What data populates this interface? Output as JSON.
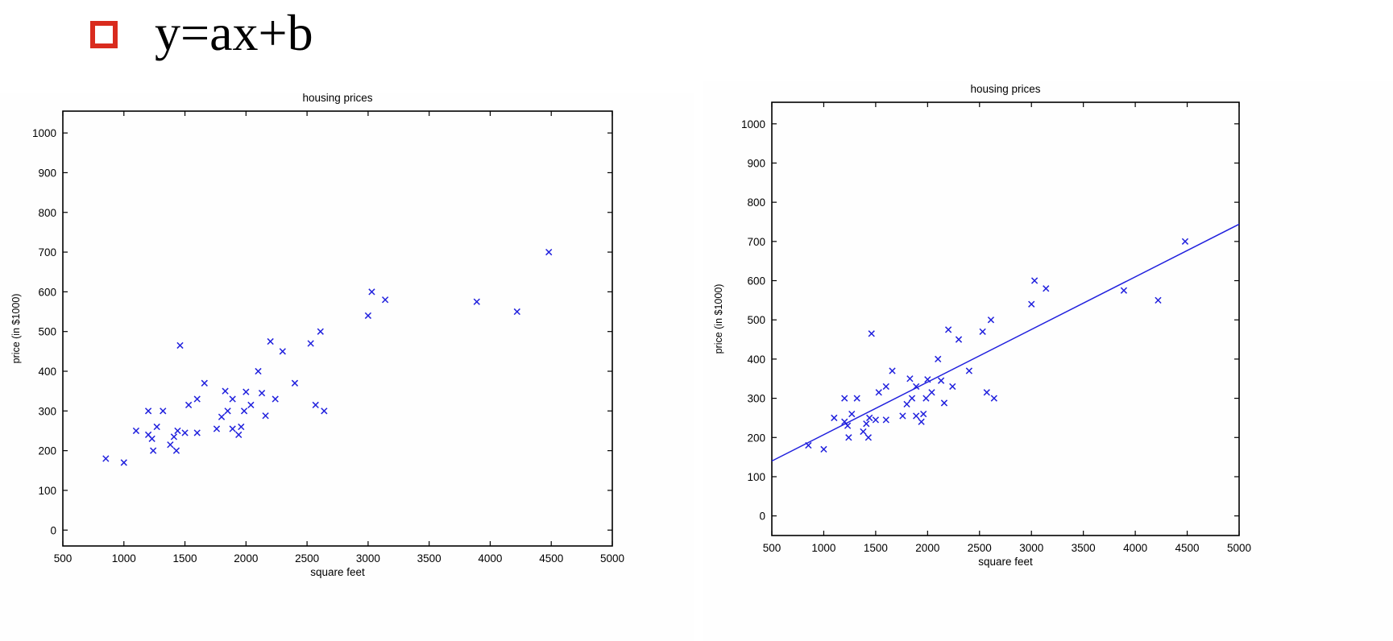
{
  "header": {
    "bullet_color": "#d92b1e",
    "formula": "y=ax+b"
  },
  "chart_data": [
    {
      "type": "scatter",
      "title": "housing prices",
      "xlabel": "square feet",
      "ylabel": "price (in $1000)",
      "xlim": [
        500,
        5000
      ],
      "ylim": [
        -40,
        1055
      ],
      "xticks": [
        500,
        1000,
        1500,
        2000,
        2500,
        3000,
        3500,
        4000,
        4500,
        5000
      ],
      "yticks": [
        0,
        100,
        200,
        300,
        400,
        500,
        600,
        700,
        800,
        900,
        1000
      ],
      "marker": "x",
      "marker_color": "#2020dd",
      "series": [
        {
          "x": [
            852,
            1000,
            1100,
            1200,
            1200,
            1230,
            1240,
            1270,
            1320,
            1380,
            1410,
            1430,
            1440,
            1460,
            1500,
            1530,
            1600,
            1600,
            1660,
            1760,
            1800,
            1830,
            1850,
            1890,
            1890,
            1940,
            1960,
            1985,
            2000,
            2040,
            2100,
            2130,
            2160,
            2200,
            2240,
            2300,
            2400,
            2530,
            2570,
            2610,
            2640,
            3000,
            3030,
            3140,
            3890,
            4220,
            4480
          ],
          "y": [
            180,
            170,
            250,
            300,
            240,
            230,
            200,
            260,
            300,
            215,
            235,
            200,
            250,
            465,
            245,
            315,
            330,
            245,
            370,
            255,
            285,
            350,
            300,
            330,
            255,
            240,
            260,
            300,
            348,
            315,
            400,
            345,
            288,
            475,
            330,
            450,
            370,
            470,
            315,
            500,
            300,
            540,
            600,
            580,
            575,
            550,
            700
          ]
        }
      ]
    },
    {
      "type": "scatter",
      "title": "housing prices",
      "xlabel": "square feet",
      "ylabel": "price (in $1000)",
      "xlim": [
        500,
        5000
      ],
      "ylim": [
        -50,
        1055
      ],
      "xticks": [
        500,
        1000,
        1500,
        2000,
        2500,
        3000,
        3500,
        4000,
        4500,
        5000
      ],
      "yticks": [
        0,
        100,
        200,
        300,
        400,
        500,
        600,
        700,
        800,
        900,
        1000
      ],
      "marker": "x",
      "marker_color": "#2020dd",
      "line_color": "#2020dd",
      "fit_line": {
        "x": [
          500,
          5000
        ],
        "y": [
          140,
          744
        ]
      },
      "series": [
        {
          "x": [
            852,
            1000,
            1100,
            1200,
            1200,
            1230,
            1240,
            1270,
            1320,
            1380,
            1410,
            1430,
            1440,
            1460,
            1500,
            1530,
            1600,
            1600,
            1660,
            1760,
            1800,
            1830,
            1850,
            1890,
            1890,
            1940,
            1960,
            1985,
            2000,
            2040,
            2100,
            2130,
            2160,
            2200,
            2240,
            2300,
            2400,
            2530,
            2570,
            2610,
            2640,
            3000,
            3030,
            3140,
            3890,
            4220,
            4480
          ],
          "y": [
            180,
            170,
            250,
            300,
            240,
            230,
            200,
            260,
            300,
            215,
            235,
            200,
            250,
            465,
            245,
            315,
            330,
            245,
            370,
            255,
            285,
            350,
            300,
            330,
            255,
            240,
            260,
            300,
            348,
            315,
            400,
            345,
            288,
            475,
            330,
            450,
            370,
            470,
            315,
            500,
            300,
            540,
            600,
            580,
            575,
            550,
            700
          ]
        }
      ]
    }
  ]
}
